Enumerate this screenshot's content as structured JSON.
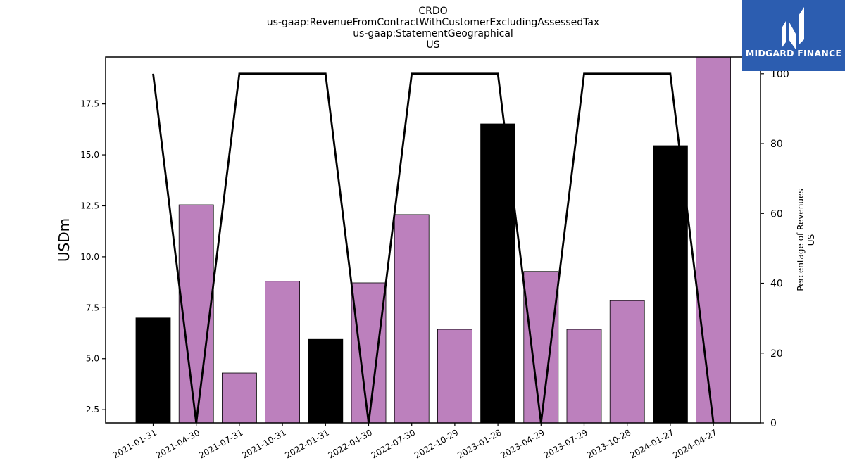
{
  "header": {
    "lines": [
      "CRDO",
      "us-gaap:RevenueFromContractWithCustomerExcludingAssessedTax",
      "us-gaap:StatementGeographical",
      "US"
    ]
  },
  "logo": {
    "text": "MIDGARD FINANCE",
    "color": "#2c5db0"
  },
  "chart_data": {
    "type": "bar",
    "categories": [
      "2021-01-31",
      "2021-04-30",
      "2021-07-31",
      "2021-10-31",
      "2022-01-31",
      "2022-04-30",
      "2022-07-30",
      "2022-10-29",
      "2023-01-28",
      "2023-04-29",
      "2023-07-29",
      "2023-10-28",
      "2024-01-27",
      "2024-04-27"
    ],
    "values": [
      7.0,
      12.55,
      4.3,
      8.8,
      5.95,
      8.72,
      12.07,
      6.44,
      16.52,
      9.28,
      6.44,
      7.85,
      15.45,
      19.8
    ],
    "bar_colors": [
      "#000000",
      "#bc80bd",
      "#bc80bd",
      "#bc80bd",
      "#000000",
      "#bc80bd",
      "#bc80bd",
      "#bc80bd",
      "#000000",
      "#bc80bd",
      "#bc80bd",
      "#bc80bd",
      "#000000",
      "#bc80bd"
    ],
    "ylabel": "USDm",
    "ylim": [
      1.85,
      19.8
    ],
    "yticks": [
      2.5,
      5.0,
      7.5,
      10.0,
      12.5,
      15.0,
      17.5
    ],
    "secondary": {
      "ylabel_lines": [
        "Percentage of Revenues",
        "US"
      ],
      "values": [
        100,
        0,
        100,
        100,
        100,
        0,
        100,
        100,
        100,
        0,
        100,
        100,
        100,
        0
      ],
      "ylim": [
        0,
        104.8
      ],
      "yticks": [
        0,
        20,
        40,
        60,
        80,
        100
      ],
      "line_color": "#000000"
    },
    "grid": false
  }
}
